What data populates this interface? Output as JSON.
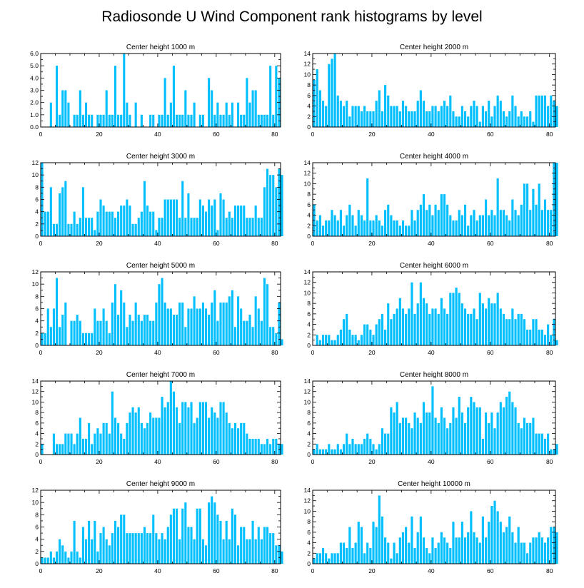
{
  "title": "Radiosonde U Wind Component rank histograms by level",
  "bar_color": "#00bfff",
  "chart_data": [
    {
      "type": "bar",
      "title": "Center height 1000 m",
      "xlim": [
        0,
        82
      ],
      "ylim": [
        0,
        6
      ],
      "xticks": [
        0,
        20,
        40,
        60,
        80
      ],
      "xtick_labels": [
        "0",
        "20",
        "40",
        "60",
        "80"
      ],
      "yticks": [
        0,
        1,
        2,
        3,
        4,
        5,
        6
      ],
      "ytick_labels": [
        "0.0",
        "1.0",
        "2.0",
        "3.0",
        "4.0",
        "5.0",
        "6.0"
      ],
      "values": [
        0,
        0,
        0,
        2,
        0,
        5,
        1,
        3,
        3,
        2,
        0,
        1,
        1,
        3,
        1,
        2,
        1,
        1,
        0,
        1,
        1,
        1,
        3,
        1,
        1,
        5,
        1,
        1,
        6,
        2,
        1,
        0,
        2,
        0,
        1,
        0,
        0,
        1,
        1,
        0,
        1,
        1,
        4,
        1,
        2,
        5,
        1,
        1,
        1,
        3,
        1,
        1,
        2,
        0,
        1,
        1,
        0,
        4,
        3,
        1,
        2,
        1,
        1,
        2,
        1,
        2,
        0,
        2,
        1,
        1,
        4,
        2,
        3,
        3,
        1,
        1,
        1,
        1,
        5,
        1,
        5,
        4,
        0
      ]
    },
    {
      "type": "bar",
      "title": "Center height 2000 m",
      "xlim": [
        0,
        82
      ],
      "ylim": [
        0,
        14
      ],
      "xticks": [
        0,
        20,
        40,
        60,
        80
      ],
      "xtick_labels": [
        "0",
        "20",
        "40",
        "60",
        "80"
      ],
      "yticks": [
        0,
        2,
        4,
        6,
        8,
        10,
        12,
        14
      ],
      "ytick_labels": [
        "0",
        "2",
        "4",
        "6",
        "8",
        "10",
        "12",
        "14"
      ],
      "values": [
        9,
        11,
        7,
        5,
        4,
        12,
        13,
        14,
        6,
        5,
        4,
        5,
        2,
        4,
        4,
        4,
        3,
        4,
        3,
        3,
        3,
        5,
        7,
        3,
        8,
        6,
        4,
        4,
        4,
        3,
        5,
        4,
        3,
        3,
        3,
        5,
        7,
        5,
        3,
        3,
        4,
        4,
        3,
        4,
        5,
        4,
        6,
        3,
        2,
        2,
        4,
        3,
        2,
        4,
        5,
        4,
        1,
        4,
        3,
        5,
        2,
        4,
        6,
        5,
        3,
        2,
        3,
        6,
        4,
        2,
        3,
        2,
        2,
        3,
        1,
        6,
        6,
        6,
        6,
        4,
        6,
        5,
        4
      ]
    },
    {
      "type": "bar",
      "title": "Center height 3000 m",
      "xlim": [
        0,
        82
      ],
      "ylim": [
        0,
        12
      ],
      "xticks": [
        0,
        20,
        40,
        60,
        80
      ],
      "xtick_labels": [
        "0",
        "20",
        "40",
        "60",
        "80"
      ],
      "yticks": [
        0,
        2,
        4,
        6,
        8,
        10,
        12
      ],
      "ytick_labels": [
        "0",
        "2",
        "4",
        "6",
        "8",
        "10",
        "12"
      ],
      "values": [
        12,
        4,
        4,
        8,
        2,
        2,
        7,
        8,
        9,
        2,
        2,
        4,
        2,
        3,
        8,
        3,
        3,
        3,
        1,
        4,
        6,
        5,
        4,
        4,
        4,
        3,
        4,
        5,
        5,
        6,
        5,
        2,
        2,
        3,
        4,
        9,
        5,
        4,
        4,
        1,
        3,
        3,
        6,
        6,
        6,
        6,
        6,
        3,
        9,
        3,
        7,
        3,
        3,
        3,
        6,
        5,
        4,
        6,
        5,
        6,
        1,
        7,
        6,
        3,
        4,
        3,
        5,
        5,
        5,
        5,
        3,
        3,
        3,
        5,
        3,
        3,
        8,
        11,
        10,
        10,
        8,
        11,
        10
      ]
    },
    {
      "type": "bar",
      "title": "Center height 4000 m",
      "xlim": [
        0,
        82
      ],
      "ylim": [
        0,
        14
      ],
      "xticks": [
        0,
        20,
        40,
        60,
        80
      ],
      "xtick_labels": [
        "0",
        "20",
        "40",
        "60",
        "80"
      ],
      "yticks": [
        0,
        2,
        4,
        6,
        8,
        10,
        12,
        14
      ],
      "ytick_labels": [
        "0",
        "2",
        "4",
        "6",
        "8",
        "10",
        "12",
        "14"
      ],
      "values": [
        6,
        3,
        4,
        2,
        3,
        3,
        5,
        4,
        3,
        5,
        2,
        4,
        6,
        4,
        2,
        5,
        4,
        3,
        11,
        3,
        3,
        4,
        3,
        2,
        5,
        6,
        4,
        3,
        3,
        2,
        3,
        2,
        2,
        5,
        3,
        5,
        6,
        8,
        5,
        6,
        4,
        6,
        5,
        8,
        8,
        6,
        4,
        3,
        3,
        5,
        4,
        6,
        2,
        4,
        5,
        3,
        4,
        4,
        7,
        4,
        5,
        4,
        11,
        5,
        5,
        4,
        3,
        7,
        5,
        4,
        6,
        10,
        10,
        5,
        9,
        6,
        10,
        5,
        7,
        5,
        5,
        14,
        14
      ]
    },
    {
      "type": "bar",
      "title": "Center height 5000 m",
      "xlim": [
        0,
        82
      ],
      "ylim": [
        0,
        12
      ],
      "xticks": [
        0,
        20,
        40,
        60,
        80
      ],
      "xtick_labels": [
        "0",
        "20",
        "40",
        "60",
        "80"
      ],
      "yticks": [
        0,
        2,
        4,
        6,
        8,
        10,
        12
      ],
      "ytick_labels": [
        "0",
        "2",
        "4",
        "6",
        "8",
        "10",
        "12"
      ],
      "values": [
        2,
        2,
        6,
        3,
        6,
        11,
        3,
        5,
        7,
        0,
        4,
        4,
        5,
        4,
        2,
        2,
        2,
        2,
        6,
        4,
        4,
        6,
        4,
        2,
        7,
        10,
        5,
        9,
        7,
        3,
        5,
        4,
        7,
        5,
        4,
        5,
        5,
        4,
        4,
        7,
        10,
        11,
        7,
        6,
        6,
        5,
        5,
        7,
        7,
        3,
        6,
        6,
        8,
        6,
        6,
        7,
        6,
        5,
        7,
        9,
        4,
        7,
        7,
        7,
        8,
        9,
        3,
        8,
        6,
        4,
        4,
        5,
        3,
        8,
        6,
        4,
        11,
        10,
        3,
        3,
        2,
        7,
        1
      ]
    },
    {
      "type": "bar",
      "title": "Center height 6000 m",
      "xlim": [
        0,
        82
      ],
      "ylim": [
        0,
        14
      ],
      "xticks": [
        0,
        20,
        40,
        60,
        80
      ],
      "xtick_labels": [
        "0",
        "20",
        "40",
        "60",
        "80"
      ],
      "yticks": [
        0,
        2,
        4,
        6,
        8,
        10,
        12,
        14
      ],
      "ytick_labels": [
        "0",
        "2",
        "4",
        "6",
        "8",
        "10",
        "12",
        "14"
      ],
      "values": [
        0,
        2,
        1,
        2,
        2,
        2,
        1,
        1,
        2,
        3,
        5,
        6,
        3,
        2,
        2,
        1,
        2,
        4,
        4,
        3,
        2,
        4,
        5,
        6,
        3,
        8,
        5,
        6,
        7,
        9,
        7,
        6,
        7,
        12,
        6,
        8,
        12,
        9,
        8,
        6,
        7,
        7,
        6,
        9,
        7,
        6,
        10,
        10,
        11,
        10,
        8,
        7,
        6,
        6,
        7,
        5,
        10,
        8,
        7,
        9,
        8,
        8,
        10,
        7,
        6,
        5,
        5,
        7,
        5,
        6,
        6,
        5,
        3,
        3,
        5,
        5,
        3,
        3,
        2,
        4,
        2,
        5,
        1
      ]
    },
    {
      "type": "bar",
      "title": "Center height 7000 m",
      "xlim": [
        0,
        82
      ],
      "ylim": [
        0,
        14
      ],
      "xticks": [
        0,
        20,
        40,
        60,
        80
      ],
      "xtick_labels": [
        "0",
        "20",
        "40",
        "60",
        "80"
      ],
      "yticks": [
        0,
        2,
        4,
        6,
        8,
        10,
        12,
        14
      ],
      "ytick_labels": [
        "0",
        "2",
        "4",
        "6",
        "8",
        "10",
        "12",
        "14"
      ],
      "values": [
        2,
        0,
        0,
        0,
        4,
        2,
        2,
        2,
        4,
        4,
        4,
        2,
        4,
        7,
        3,
        3,
        6,
        2,
        4,
        5,
        4,
        6,
        6,
        4,
        12,
        7,
        6,
        4,
        3,
        6,
        8,
        9,
        8,
        9,
        6,
        5,
        6,
        8,
        7,
        7,
        7,
        11,
        9,
        10,
        14,
        12,
        9,
        6,
        10,
        10,
        9,
        10,
        6,
        7,
        10,
        10,
        10,
        7,
        9,
        8,
        7,
        10,
        10,
        8,
        6,
        5,
        6,
        5,
        6,
        6,
        4,
        3,
        3,
        3,
        3,
        2,
        2,
        3,
        2,
        3,
        3,
        2,
        2
      ]
    },
    {
      "type": "bar",
      "title": "Center height 8000 m",
      "xlim": [
        0,
        82
      ],
      "ylim": [
        0,
        14
      ],
      "xticks": [
        0,
        20,
        40,
        60,
        80
      ],
      "xtick_labels": [
        "0",
        "20",
        "40",
        "60",
        "80"
      ],
      "yticks": [
        0,
        2,
        4,
        6,
        8,
        10,
        12,
        14
      ],
      "ytick_labels": [
        "0",
        "2",
        "4",
        "6",
        "8",
        "10",
        "12",
        "14"
      ],
      "values": [
        1,
        2,
        1,
        1,
        1,
        2,
        1,
        1,
        2,
        1,
        2,
        4,
        2,
        3,
        2,
        2,
        2,
        3,
        4,
        3,
        2,
        1,
        2,
        5,
        4,
        4,
        9,
        8,
        10,
        6,
        7,
        7,
        6,
        5,
        8,
        7,
        6,
        10,
        8,
        8,
        13,
        7,
        6,
        9,
        7,
        5,
        6,
        9,
        7,
        11,
        8,
        6,
        9,
        11,
        10,
        9,
        9,
        3,
        8,
        6,
        8,
        5,
        8,
        10,
        9,
        11,
        12,
        10,
        9,
        6,
        5,
        7,
        6,
        6,
        7,
        4,
        4,
        4,
        3,
        4,
        1,
        1,
        2
      ]
    },
    {
      "type": "bar",
      "title": "Center height 9000 m",
      "xlim": [
        0,
        82
      ],
      "ylim": [
        0,
        12
      ],
      "xticks": [
        0,
        20,
        40,
        60,
        80
      ],
      "xtick_labels": [
        "0",
        "20",
        "40",
        "60",
        "80"
      ],
      "yticks": [
        0,
        2,
        4,
        6,
        8,
        10,
        12
      ],
      "ytick_labels": [
        "0",
        "2",
        "4",
        "6",
        "8",
        "10",
        "12"
      ],
      "values": [
        1,
        1,
        1,
        2,
        1,
        2,
        4,
        3,
        2,
        1,
        2,
        7,
        2,
        1,
        6,
        4,
        7,
        4,
        7,
        2,
        5,
        6,
        4,
        3,
        5,
        7,
        6,
        8,
        8,
        5,
        5,
        5,
        5,
        5,
        5,
        6,
        5,
        5,
        8,
        5,
        4,
        5,
        4,
        6,
        8,
        9,
        9,
        4,
        9,
        10,
        6,
        6,
        4,
        9,
        9,
        4,
        3,
        10,
        11,
        10,
        8,
        7,
        4,
        7,
        4,
        9,
        8,
        3,
        6,
        6,
        4,
        4,
        7,
        4,
        6,
        4,
        6,
        6,
        5,
        5,
        3,
        3,
        2
      ]
    },
    {
      "type": "bar",
      "title": "Center height 10000 m",
      "xlim": [
        0,
        82
      ],
      "ylim": [
        0,
        14
      ],
      "xticks": [
        0,
        20,
        40,
        60,
        80
      ],
      "xtick_labels": [
        "0",
        "20",
        "40",
        "60",
        "80"
      ],
      "yticks": [
        0,
        2,
        4,
        6,
        8,
        10,
        12,
        14
      ],
      "ytick_labels": [
        "0",
        "2",
        "4",
        "6",
        "8",
        "10",
        "12",
        "14"
      ],
      "values": [
        1,
        2,
        2,
        3,
        2,
        1,
        2,
        2,
        2,
        4,
        4,
        3,
        7,
        3,
        4,
        8,
        7,
        2,
        4,
        3,
        8,
        7,
        13,
        9,
        5,
        4,
        1,
        4,
        2,
        5,
        6,
        7,
        4,
        9,
        3,
        6,
        9,
        5,
        3,
        2,
        5,
        3,
        4,
        6,
        5,
        4,
        3,
        8,
        5,
        5,
        8,
        5,
        6,
        10,
        6,
        5,
        4,
        9,
        5,
        8,
        11,
        12,
        10,
        8,
        6,
        7,
        9,
        6,
        4,
        7,
        4,
        4,
        2,
        4,
        5,
        5,
        6,
        5,
        4,
        5,
        7,
        7,
        6
      ]
    }
  ]
}
